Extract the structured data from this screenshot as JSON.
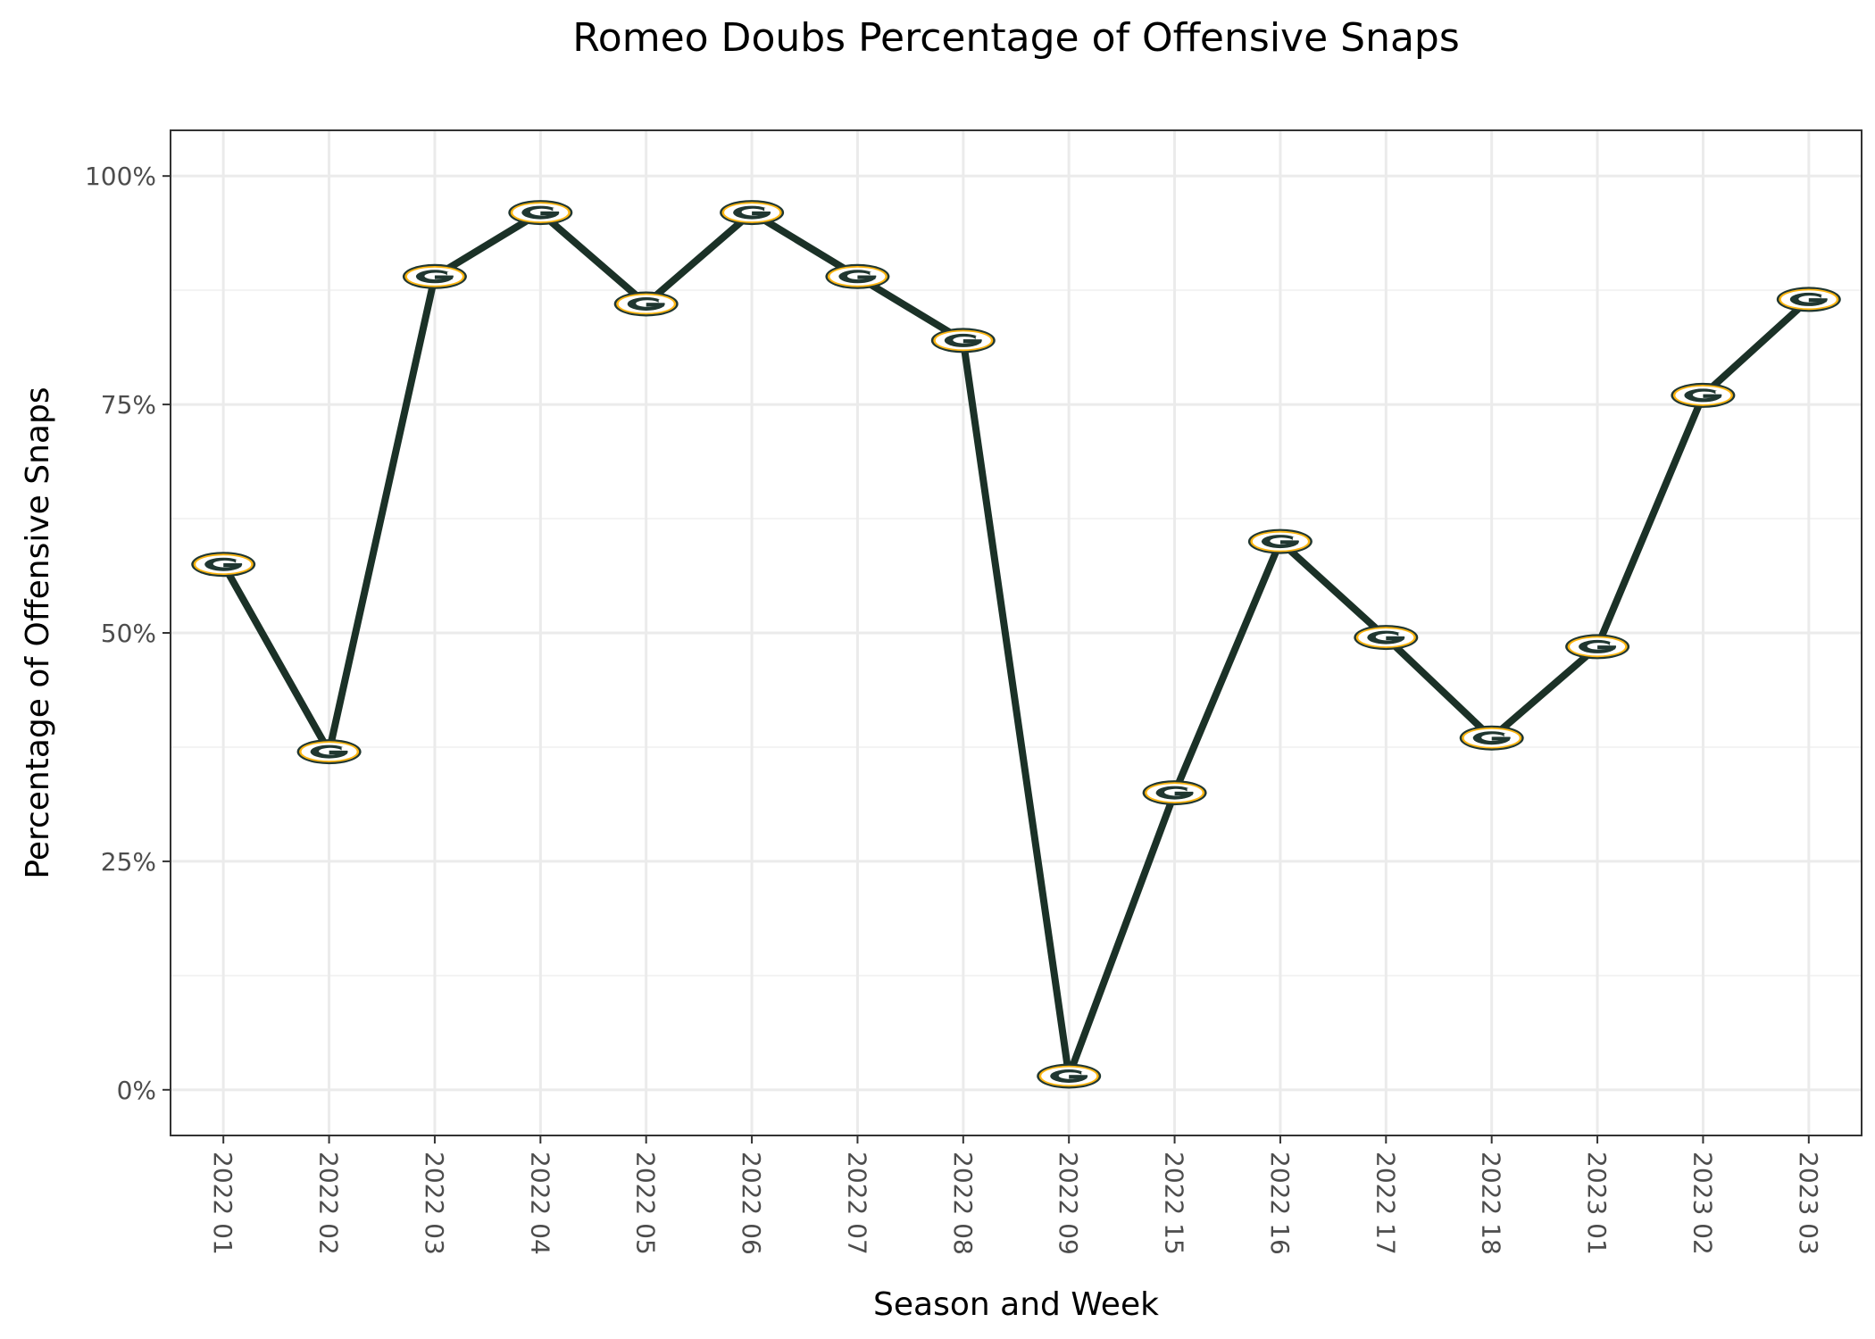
{
  "chart_data": {
    "type": "line",
    "title": "Romeo Doubs Percentage of Offensive Snaps",
    "xlabel": "Season and Week",
    "ylabel": "Percentage of Offensive Snaps",
    "categories": [
      "2022 01",
      "2022 02",
      "2022 03",
      "2022 04",
      "2022 05",
      "2022 06",
      "2022 07",
      "2022 08",
      "2022 09",
      "2022 15",
      "2022 16",
      "2022 17",
      "2022 18",
      "2023 01",
      "2023 02",
      "2023 03"
    ],
    "series": [
      {
        "values": [
          57.5,
          37,
          89,
          96,
          86,
          96,
          89,
          82,
          1.5,
          32.5,
          60,
          49.5,
          38.5,
          48.5,
          76,
          86.5
        ]
      }
    ],
    "ylim": [
      -5,
      105
    ],
    "y_ticks": [
      0,
      25,
      50,
      75,
      100
    ],
    "y_tick_labels": [
      "0%",
      "25%",
      "50%",
      "75%",
      "100%"
    ],
    "grid": true,
    "legend": "none",
    "marker": "green-bay-packers-logo-icon",
    "colors": {
      "line": "#1b3127",
      "marker_fill": "#ffffff",
      "marker_ring": "#ffb612",
      "marker_logo": "#203731",
      "grid_major": "#ebebeb",
      "grid_minor": "#f3f3f3",
      "panel_border": "#333333",
      "tick_text": "#4d4d4d"
    }
  }
}
